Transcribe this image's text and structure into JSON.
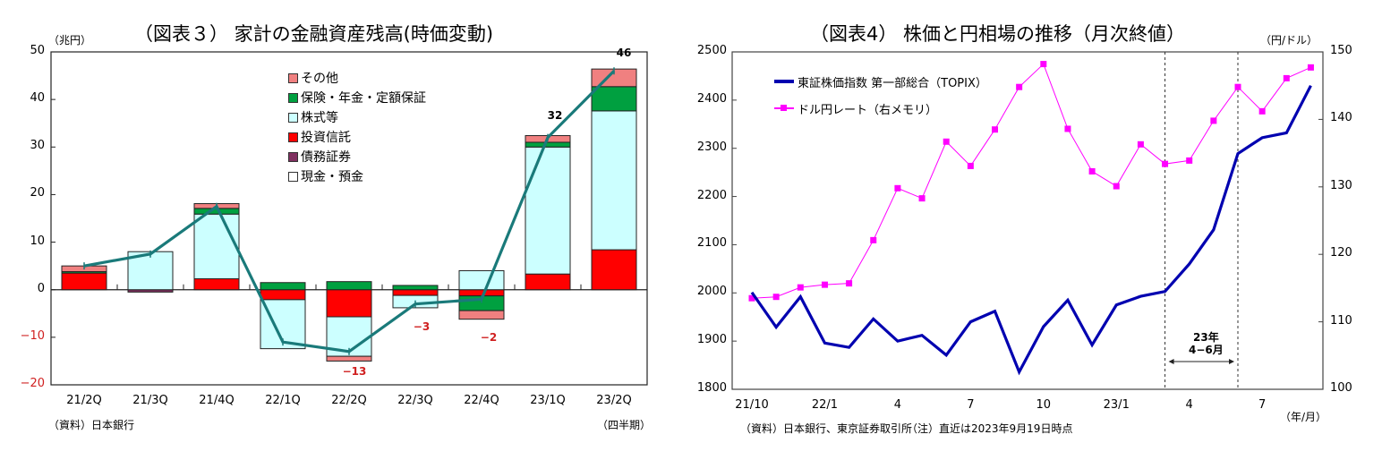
{
  "left": {
    "title": "（図表３） 家計の金融資産残高(時価変動)",
    "unit": "（兆円）",
    "yticks": [
      "50",
      "40",
      "30",
      "20",
      "10",
      "0",
      "−10",
      "−20"
    ],
    "source": "（資料）日本銀行",
    "xunit": "（四半期）",
    "categories": [
      "21/2Q",
      "21/3Q",
      "21/4Q",
      "22/1Q",
      "22/2Q",
      "22/3Q",
      "22/4Q",
      "23/1Q",
      "23/2Q"
    ],
    "data_labels": [
      {
        "text": "32",
        "idx": 7
      },
      {
        "text": "46",
        "idx": 8
      },
      {
        "text": "−3",
        "idx": 5
      },
      {
        "text": "−2",
        "idx": 6
      },
      {
        "text": "−13",
        "idx": 4
      }
    ],
    "legend": [
      {
        "label": "その他",
        "color": "#f08080"
      },
      {
        "label": "保険・年金・定額保証",
        "color": "#00a040"
      },
      {
        "label": "株式等",
        "color": "#ccffff"
      },
      {
        "label": "投資信託",
        "color": "#ff0000"
      },
      {
        "label": "債務証券",
        "color": "#803060"
      },
      {
        "label": "現金・預金",
        "color": "#ffffff"
      }
    ]
  },
  "right": {
    "title": "（図表4） 株価と円相場の推移（月次終値）",
    "right_unit": "（円/ドル）",
    "yticks_left": [
      "2500",
      "2400",
      "2300",
      "2200",
      "2100",
      "2000",
      "1900",
      "1800"
    ],
    "yticks_right": [
      "150",
      "140",
      "130",
      "120",
      "110",
      "100"
    ],
    "xticks": [
      "21/10",
      "22/1",
      "4",
      "7",
      "10",
      "23/1",
      "4",
      "7"
    ],
    "xunit": "（年/月）",
    "legend": [
      {
        "label": "東証株価指数 第一部総合（TOPIX）",
        "color": "#0000b0"
      },
      {
        "label": "ドル円レート（右メモリ）",
        "color": "#ff00ff"
      }
    ],
    "annotation_line1": "23年",
    "annotation_line2": "4−6月",
    "source": "（資料）日本銀行、東京証券取引所",
    "note": "（注）直近は2023年9月19日時点"
  },
  "chart_data": [
    {
      "type": "bar",
      "title": "（図表３） 家計の金融資産残高(時価変動)",
      "ylabel": "兆円",
      "xlabel": "四半期",
      "ylim": [
        -20,
        50
      ],
      "categories": [
        "21/2Q",
        "21/3Q",
        "21/4Q",
        "22/1Q",
        "22/2Q",
        "22/3Q",
        "22/4Q",
        "23/1Q",
        "23/2Q"
      ],
      "stacked": true,
      "series": [
        {
          "name": "現金・預金",
          "values": [
            0,
            0,
            0,
            0,
            0,
            0,
            0,
            0,
            0
          ]
        },
        {
          "name": "債務証券",
          "values": [
            0,
            -0.5,
            0,
            0,
            0,
            0,
            0,
            0,
            0
          ]
        },
        {
          "name": "投資信託",
          "values": [
            3.5,
            0,
            2.3,
            -2.1,
            -5.7,
            -1.2,
            -1.3,
            3.3,
            8.4
          ]
        },
        {
          "name": "株式等",
          "values": [
            0,
            8.0,
            13.6,
            -10.3,
            -8.3,
            -2.6,
            4.0,
            26.7,
            29.2
          ]
        },
        {
          "name": "保険・年金・定額保証",
          "values": [
            0.3,
            0,
            1.2,
            1.5,
            1.7,
            0.9,
            -3.1,
            1.0,
            5.1
          ]
        },
        {
          "name": "その他",
          "values": [
            1.2,
            0,
            1.0,
            0,
            -1.0,
            0,
            -1.8,
            1.4,
            3.7
          ]
        }
      ],
      "total_line": {
        "name": "合計",
        "values": [
          5,
          7.5,
          17.5,
          -11,
          -13,
          -3,
          -2,
          32,
          46
        ],
        "color": "#1a7a7a"
      },
      "data_labels": {
        "22/2Q": "-13",
        "22/3Q": "-3",
        "22/4Q": "-2",
        "23/1Q": "32",
        "23/2Q": "46"
      },
      "legend_position": "upper-center"
    },
    {
      "type": "line",
      "title": "（図表4） 株価と円相場の推移（月次終値）",
      "x": [
        "21/10",
        "21/11",
        "21/12",
        "22/1",
        "22/2",
        "22/3",
        "22/4",
        "22/5",
        "22/6",
        "22/7",
        "22/8",
        "22/9",
        "22/10",
        "22/11",
        "22/12",
        "23/1",
        "23/2",
        "23/3",
        "23/4",
        "23/5",
        "23/6",
        "23/7",
        "23/8",
        "23/9"
      ],
      "xticks": [
        "21/10",
        "22/1",
        "4",
        "7",
        "10",
        "23/1",
        "4",
        "7"
      ],
      "xlabel": "年/月",
      "series": [
        {
          "name": "東証株価指数 第一部総合（TOPIX）",
          "axis": "left",
          "color": "#0000b0",
          "values": [
            2001,
            1929,
            1992,
            1896,
            1887,
            1946,
            1900,
            1912,
            1871,
            1940,
            1962,
            1836,
            1930,
            1985,
            1892,
            1975,
            1993,
            2003,
            2060,
            2131,
            2289,
            2322,
            2332,
            2430
          ]
        },
        {
          "name": "ドル円レート（右メモリ）",
          "axis": "right",
          "color": "#ff00ff",
          "marker": "square",
          "values": [
            113.5,
            113.7,
            115.1,
            115.5,
            115.7,
            122.1,
            129.8,
            128.3,
            136.7,
            133.1,
            138.5,
            144.8,
            148.2,
            138.6,
            132.3,
            130.1,
            136.3,
            133.4,
            133.9,
            139.8,
            144.8,
            141.2,
            146.1,
            147.7
          ]
        }
      ],
      "ylim_left": [
        1800,
        2500
      ],
      "ylim_right": [
        100,
        150
      ],
      "ylabel_right": "円/ドル",
      "annotations": [
        {
          "text": "23年 4−6月",
          "range": [
            "23/3",
            "23/6"
          ],
          "style": "dashed vertical lines with double arrow"
        }
      ],
      "legend_position": "upper-left"
    }
  ]
}
